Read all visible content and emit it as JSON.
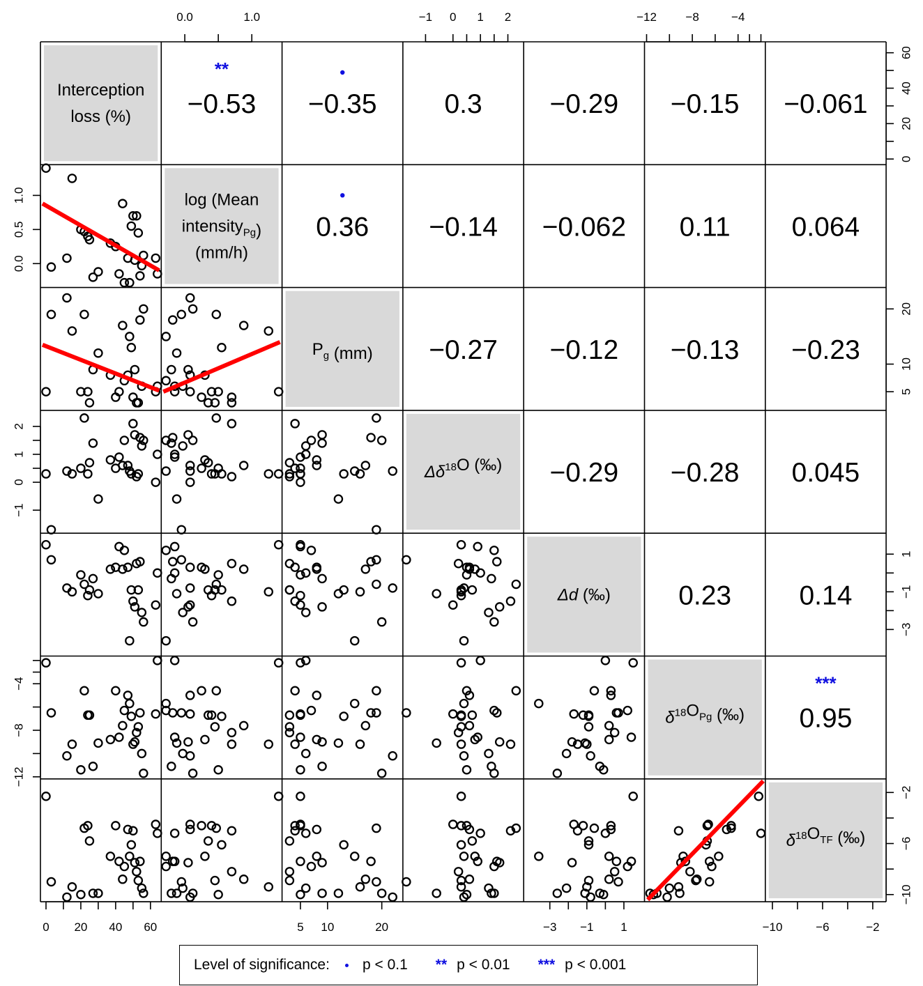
{
  "chart_data": {
    "type": "scatter-matrix",
    "variables": [
      {
        "label_parts": [
          [
            "Interception"
          ],
          [
            "loss (%)"
          ]
        ],
        "range": [
          -2,
          65
        ],
        "ticks": [
          0,
          20,
          40,
          60
        ],
        "minor": [
          10,
          30,
          50
        ]
      },
      {
        "label_parts": [
          [
            "log (Mean"
          ],
          [
            "intensity",
            {
              "sub": "Pg"
            },
            ")"
          ],
          [
            "(mm/h)"
          ]
        ],
        "range": [
          -0.32,
          1.42
        ],
        "ticks": [
          0.0,
          0.5,
          1.0
        ],
        "tick_labels": [
          "0.0",
          "0.5",
          "1.0"
        ]
      },
      {
        "label_parts": [
          [
            "P",
            {
              "sub": "g"
            },
            " (mm)"
          ]
        ],
        "range": [
          2.0,
          23.5
        ],
        "ticks": [
          5,
          10,
          20
        ],
        "top_ticks": [
          5,
          10,
          15,
          20
        ]
      },
      {
        "label_parts": [
          [
            {
              "it": "Δδ"
            },
            {
              "sup": "18"
            },
            "O (‰)"
          ]
        ],
        "range": [
          -1.75,
          2.5
        ],
        "ticks": [
          -1,
          0,
          1,
          2
        ],
        "minor": [
          0.5,
          1.5
        ]
      },
      {
        "label_parts": [
          [
            {
              "it": "Δd"
            },
            " (‰)"
          ]
        ],
        "range": [
          -4.3,
          2.0
        ],
        "ticks": [
          -3,
          -1,
          1
        ],
        "minor": [
          -2,
          0
        ]
      },
      {
        "label_parts": [
          [
            {
              "it": "δ"
            },
            {
              "sup": "18"
            },
            "O",
            {
              "sub": "Pg"
            },
            " (‰)"
          ]
        ],
        "range": [
          -12.0,
          -1.8
        ],
        "ticks": [
          -12,
          -8,
          -4
        ],
        "minor": [
          -10,
          -6,
          -3,
          -2
        ]
      },
      {
        "label_parts": [
          [
            {
              "it": "δ"
            },
            {
              "sup": "18"
            },
            "O",
            {
              "sub": "TF"
            },
            " (‰)"
          ]
        ],
        "range": [
          -10.4,
          -1.1
        ],
        "ticks": [
          -10,
          -6,
          -2
        ],
        "minor": [
          -8,
          -4
        ]
      }
    ],
    "top_axes": [
      1,
      3,
      5
    ],
    "bottom_axes": [
      0,
      2,
      4,
      6
    ],
    "left_axes": [
      1,
      3,
      5
    ],
    "right_axes": [
      0,
      2,
      4,
      6
    ],
    "correlations": [
      {
        "row": 0,
        "col": 1,
        "r": "−0.53",
        "sig": "**"
      },
      {
        "row": 0,
        "col": 2,
        "r": "−0.35",
        "sig": "•"
      },
      {
        "row": 0,
        "col": 3,
        "r": "0.3",
        "sig": ""
      },
      {
        "row": 0,
        "col": 4,
        "r": "−0.29",
        "sig": ""
      },
      {
        "row": 0,
        "col": 5,
        "r": "−0.15",
        "sig": ""
      },
      {
        "row": 0,
        "col": 6,
        "r": "−0.061",
        "sig": ""
      },
      {
        "row": 1,
        "col": 2,
        "r": "0.36",
        "sig": "•"
      },
      {
        "row": 1,
        "col": 3,
        "r": "−0.14",
        "sig": ""
      },
      {
        "row": 1,
        "col": 4,
        "r": "−0.062",
        "sig": ""
      },
      {
        "row": 1,
        "col": 5,
        "r": "0.11",
        "sig": ""
      },
      {
        "row": 1,
        "col": 6,
        "r": "0.064",
        "sig": ""
      },
      {
        "row": 2,
        "col": 3,
        "r": "−0.27",
        "sig": ""
      },
      {
        "row": 2,
        "col": 4,
        "r": "−0.12",
        "sig": ""
      },
      {
        "row": 2,
        "col": 5,
        "r": "−0.13",
        "sig": ""
      },
      {
        "row": 2,
        "col": 6,
        "r": "−0.23",
        "sig": ""
      },
      {
        "row": 3,
        "col": 4,
        "r": "−0.29",
        "sig": ""
      },
      {
        "row": 3,
        "col": 5,
        "r": "−0.28",
        "sig": ""
      },
      {
        "row": 3,
        "col": 6,
        "r": "0.045",
        "sig": ""
      },
      {
        "row": 4,
        "col": 5,
        "r": "0.23",
        "sig": ""
      },
      {
        "row": 4,
        "col": 6,
        "r": "0.14",
        "sig": ""
      },
      {
        "row": 5,
        "col": 6,
        "r": "0.95",
        "sig": "***"
      }
    ],
    "fits": [
      {
        "row": 1,
        "col": 0,
        "x0": -2,
        "y0": 0.88,
        "x1": 65,
        "y1": -0.1
      },
      {
        "row": 2,
        "col": 0,
        "x0": -2,
        "y0": 13.5,
        "x1": 65,
        "y1": 5.2
      },
      {
        "row": 2,
        "col": 1,
        "x0": -0.32,
        "y0": 5.0,
        "x1": 1.42,
        "y1": 14.0
      },
      {
        "row": 6,
        "col": 5,
        "x0": -11.9,
        "y0": -10.4,
        "x1": -1.8,
        "y1": -1.1
      }
    ],
    "observations": [
      [
        0,
        1.4,
        5,
        0.3,
        1.5,
        -2.2,
        -2.3
      ],
      [
        3,
        -0.05,
        19,
        -1.7,
        0.7,
        -6.5,
        -9.0
      ],
      [
        12,
        0.08,
        22,
        0.4,
        -0.8,
        -10.2,
        -10.2
      ],
      [
        15,
        1.25,
        16,
        0.3,
        -1.0,
        -9.2,
        -9.4
      ],
      [
        20,
        0.5,
        5,
        0.5,
        -0.1,
        -11.4,
        -10.0
      ],
      [
        22,
        0.47,
        19,
        2.3,
        -0.6,
        -4.6,
        -4.8
      ],
      [
        24,
        0.4,
        5,
        0.3,
        -1.2,
        -6.7,
        -4.6
      ],
      [
        25,
        0.35,
        3,
        0.7,
        -0.9,
        -6.7,
        -5.8
      ],
      [
        27,
        -0.2,
        9,
        1.4,
        -0.3,
        -11.1,
        -9.9
      ],
      [
        30,
        -0.12,
        12,
        -0.6,
        -1.1,
        -9.1,
        -9.9
      ],
      [
        37,
        0.3,
        8,
        0.8,
        0.2,
        -8.8,
        -7.0
      ],
      [
        40,
        0.25,
        4,
        0.5,
        0.3,
        -4.6,
        -4.6
      ],
      [
        42,
        -0.15,
        5,
        0.9,
        1.4,
        -8.6,
        -7.4
      ],
      [
        44,
        0.88,
        17,
        0.6,
        0.2,
        -7.6,
        -8.8
      ],
      [
        45,
        -0.28,
        7,
        1.5,
        1.2,
        -6.3,
        -7.8
      ],
      [
        47,
        0.08,
        8,
        0.6,
        0.3,
        -5.0,
        -4.9
      ],
      [
        48,
        -0.28,
        15,
        0.4,
        -3.6,
        -5.7,
        -7.0
      ],
      [
        49,
        0.55,
        13,
        0.3,
        -0.9,
        -6.8,
        -6.1
      ],
      [
        50,
        0.7,
        4,
        2.1,
        -1.5,
        -9.2,
        -5.0
      ],
      [
        51,
        0.05,
        9,
        1.7,
        -1.8,
        -9.0,
        -7.5
      ],
      [
        52,
        0.7,
        3,
        0.2,
        0.5,
        -8.2,
        -8.2
      ],
      [
        53,
        0.45,
        3,
        0.3,
        -0.9,
        -7.7,
        -8.9
      ],
      [
        54,
        -0.18,
        18,
        1.6,
        0.6,
        -6.5,
        -7.4
      ],
      [
        55,
        -0.03,
        6,
        1.3,
        -2.1,
        -10.0,
        -9.5
      ],
      [
        56,
        0.12,
        20,
        1.5,
        -2.6,
        -11.7,
        -9.9
      ],
      [
        63,
        0.08,
        5,
        0.0,
        -1.7,
        -6.6,
        -4.5
      ],
      [
        64,
        -0.15,
        6,
        1.0,
        0.0,
        -2.0,
        -5.2
      ]
    ]
  },
  "legend": {
    "title": "Level of significance:",
    "items": [
      {
        "symbol": "•",
        "label": "p < 0.1"
      },
      {
        "symbol": "**",
        "label": "p < 0.01"
      },
      {
        "symbol": "***",
        "label": "p < 0.001"
      }
    ]
  },
  "colors": {
    "fit": "#ff0000",
    "significance": "#1010e0",
    "diagonal": "#d9d9d9"
  }
}
